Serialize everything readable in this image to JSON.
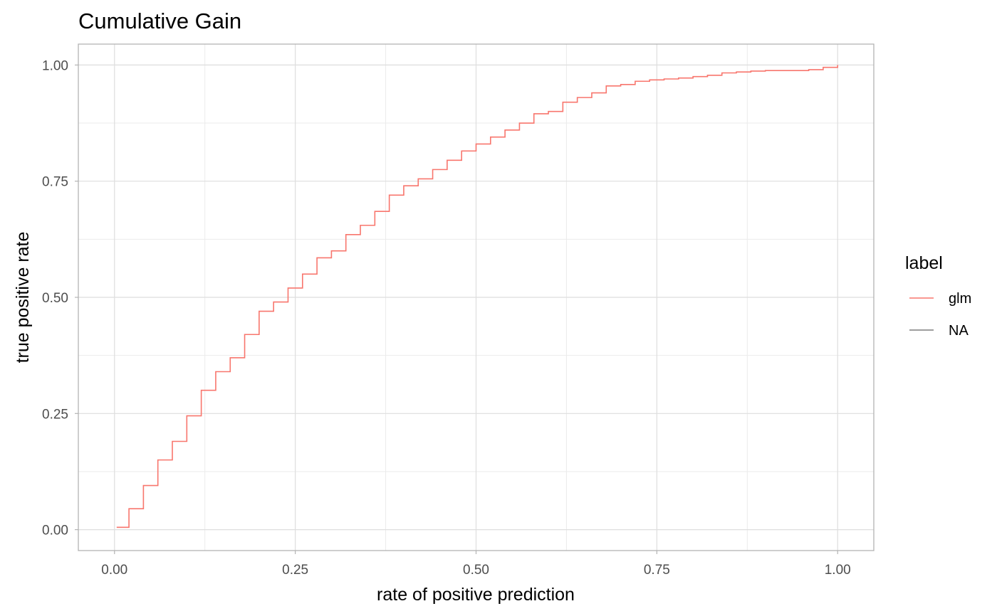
{
  "chart_data": {
    "type": "line",
    "title": "Cumulative Gain",
    "xlabel": "rate of positive prediction",
    "ylabel": "true positive rate",
    "xlim": [
      -0.05,
      1.05
    ],
    "ylim": [
      -0.045,
      1.045
    ],
    "x_ticks": [
      0,
      0.25,
      0.5,
      0.75,
      1
    ],
    "x_tick_labels": [
      "0.00",
      "0.25",
      "0.50",
      "0.75",
      "1.00"
    ],
    "y_ticks": [
      0,
      0.25,
      0.5,
      0.75,
      1
    ],
    "y_tick_labels": [
      "0.00",
      "0.25",
      "0.50",
      "0.75",
      "1.00"
    ],
    "grid": true,
    "legend": {
      "title": "label",
      "position": "right",
      "entries": [
        {
          "label": "glm",
          "color": "#F8766D"
        },
        {
          "label": "NA",
          "color": "#7f7f7f"
        }
      ]
    },
    "series": [
      {
        "name": "glm",
        "color": "#F8766D",
        "x": [
          0.003,
          0.02,
          0.04,
          0.06,
          0.08,
          0.1,
          0.12,
          0.14,
          0.16,
          0.18,
          0.2,
          0.22,
          0.24,
          0.26,
          0.28,
          0.3,
          0.32,
          0.34,
          0.36,
          0.38,
          0.4,
          0.42,
          0.44,
          0.46,
          0.48,
          0.5,
          0.52,
          0.54,
          0.56,
          0.58,
          0.6,
          0.62,
          0.64,
          0.66,
          0.68,
          0.7,
          0.72,
          0.74,
          0.76,
          0.78,
          0.8,
          0.82,
          0.84,
          0.86,
          0.88,
          0.9,
          0.92,
          0.94,
          0.96,
          0.98,
          1.0
        ],
        "y": [
          0.005,
          0.045,
          0.095,
          0.15,
          0.19,
          0.245,
          0.3,
          0.34,
          0.37,
          0.42,
          0.47,
          0.49,
          0.52,
          0.55,
          0.585,
          0.6,
          0.635,
          0.655,
          0.685,
          0.72,
          0.74,
          0.755,
          0.775,
          0.795,
          0.815,
          0.83,
          0.845,
          0.86,
          0.875,
          0.895,
          0.9,
          0.92,
          0.93,
          0.94,
          0.955,
          0.958,
          0.965,
          0.968,
          0.97,
          0.972,
          0.975,
          0.978,
          0.983,
          0.985,
          0.987,
          0.988,
          0.988,
          0.988,
          0.99,
          0.995,
          1.0
        ]
      }
    ]
  }
}
